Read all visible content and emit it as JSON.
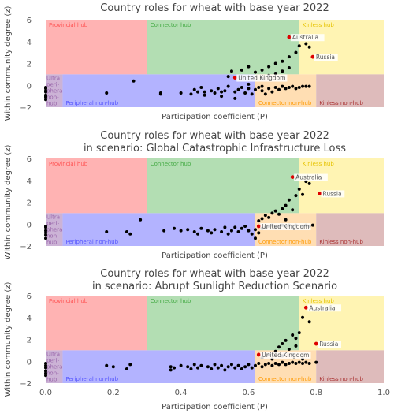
{
  "chart_data": [
    {
      "type": "scatter",
      "title": "Country roles for wheat with base year 2022",
      "xlabel": "Participation coefficient (P)",
      "ylabel": "Within community degree (z)",
      "xlim": [
        0,
        1
      ],
      "ylim": [
        -2,
        6
      ],
      "yticks": [
        -2,
        0,
        2,
        4,
        6
      ],
      "xticks": [],
      "regions": [
        {
          "name": "Provincial hub",
          "x": [
            0,
            0.3
          ],
          "y": [
            1,
            6
          ],
          "color": "#ffb3b3",
          "label_color": "#ff5555"
        },
        {
          "name": "Connector hub",
          "x": [
            0.3,
            0.75
          ],
          "y": [
            1,
            6
          ],
          "color": "#b3deb3",
          "label_color": "#44aa44"
        },
        {
          "name": "Kinless hub",
          "x": [
            0.75,
            1
          ],
          "y": [
            1,
            6
          ],
          "color": "#fff4b3",
          "label_color": "#e6c300"
        },
        {
          "name": "Ultra peri-pheral non-hub",
          "x": [
            0,
            0.05
          ],
          "y": [
            -2,
            1
          ],
          "color": "#ccb3d6",
          "label_color": "#9966aa"
        },
        {
          "name": "Peripheral non-hub",
          "x": [
            0.05,
            0.62
          ],
          "y": [
            -2,
            1
          ],
          "color": "#b3b3ff",
          "label_color": "#5555ff"
        },
        {
          "name": "Connector non-hub",
          "x": [
            0.62,
            0.8
          ],
          "y": [
            -2,
            1
          ],
          "color": "#ffdeb3",
          "label_color": "#ff9900"
        },
        {
          "name": "Kinless non-hub",
          "x": [
            0.8,
            1
          ],
          "y": [
            -2,
            1
          ],
          "color": "#debbbb",
          "label_color": "#aa3333"
        }
      ],
      "highlighted": [
        {
          "name": "Australia",
          "x": 0.72,
          "y": 4.4
        },
        {
          "name": "Russia",
          "x": 0.79,
          "y": 2.6
        },
        {
          "name": "United Kingdom",
          "x": 0.56,
          "y": 0.7
        }
      ],
      "points": [
        [
          0,
          -0.2
        ],
        [
          0,
          -0.3
        ],
        [
          0,
          -0.5
        ],
        [
          0,
          -0.6
        ],
        [
          0,
          -0.9
        ],
        [
          0,
          -1.0
        ],
        [
          0,
          -1.1
        ],
        [
          0,
          -1.3
        ],
        [
          0.18,
          -0.7
        ],
        [
          0.26,
          0.4
        ],
        [
          0.34,
          -0.7
        ],
        [
          0.34,
          -0.8
        ],
        [
          0.4,
          -0.7
        ],
        [
          0.43,
          -0.8
        ],
        [
          0.44,
          -0.4
        ],
        [
          0.45,
          -0.6
        ],
        [
          0.46,
          -0.2
        ],
        [
          0.47,
          -0.6
        ],
        [
          0.47,
          -0.9
        ],
        [
          0.49,
          -0.5
        ],
        [
          0.5,
          -0.7
        ],
        [
          0.51,
          -0.3
        ],
        [
          0.52,
          -1.0
        ],
        [
          0.52,
          -0.6
        ],
        [
          0.53,
          -0.5
        ],
        [
          0.54,
          -0.1
        ],
        [
          0.54,
          0.8
        ],
        [
          0.56,
          -1.2
        ],
        [
          0.56,
          -0.6
        ],
        [
          0.57,
          -0.4
        ],
        [
          0.58,
          -0.2
        ],
        [
          0.59,
          -0.7
        ],
        [
          0.6,
          0.1
        ],
        [
          0.6,
          -0.3
        ],
        [
          0.61,
          -0.8
        ],
        [
          0.62,
          -0.4
        ],
        [
          0.63,
          -0.2
        ],
        [
          0.64,
          -0.1
        ],
        [
          0.64,
          -0.5
        ],
        [
          0.65,
          -0.8
        ],
        [
          0.66,
          -0.3
        ],
        [
          0.67,
          -0.6
        ],
        [
          0.68,
          -0.2
        ],
        [
          0.69,
          -0.4
        ],
        [
          0.7,
          -0.1
        ],
        [
          0.71,
          -0.3
        ],
        [
          0.72,
          -0.2
        ],
        [
          0.73,
          -0.1
        ],
        [
          0.74,
          -0.3
        ],
        [
          0.75,
          -0.2
        ],
        [
          0.76,
          -0.1
        ],
        [
          0.77,
          -0.1
        ],
        [
          0.78,
          -0.1
        ],
        [
          0.64,
          0.6
        ],
        [
          0.66,
          0.9
        ],
        [
          0.68,
          1.1
        ],
        [
          0.7,
          1.3
        ],
        [
          0.72,
          1.6
        ],
        [
          0.55,
          1.3
        ],
        [
          0.58,
          1.4
        ],
        [
          0.6,
          1.7
        ],
        [
          0.62,
          1.2
        ],
        [
          0.64,
          1.4
        ],
        [
          0.66,
          1.7
        ],
        [
          0.68,
          2.0
        ],
        [
          0.7,
          2.2
        ],
        [
          0.72,
          2.6
        ],
        [
          0.74,
          3.0
        ],
        [
          0.75,
          3.6
        ],
        [
          0.77,
          3.8
        ],
        [
          0.78,
          3.5
        ]
      ]
    },
    {
      "type": "scatter",
      "title": "Country roles for wheat with base year 2022\nin scenario: Global Catastrophic Infrastructure Loss",
      "xlabel": "Participation coefficient (P)",
      "ylabel": "Within community degree (z)",
      "xlim": [
        0,
        1
      ],
      "ylim": [
        -2,
        6
      ],
      "yticks": [
        -2,
        0,
        2,
        4,
        6
      ],
      "xticks": [],
      "regions": [
        {
          "name": "Provincial hub",
          "x": [
            0,
            0.3
          ],
          "y": [
            1,
            6
          ],
          "color": "#ffb3b3",
          "label_color": "#ff5555"
        },
        {
          "name": "Connector hub",
          "x": [
            0.3,
            0.75
          ],
          "y": [
            1,
            6
          ],
          "color": "#b3deb3",
          "label_color": "#44aa44"
        },
        {
          "name": "Kinless hub",
          "x": [
            0.75,
            1
          ],
          "y": [
            1,
            6
          ],
          "color": "#fff4b3",
          "label_color": "#e6c300"
        },
        {
          "name": "Ultra peri-pheral non-hub",
          "x": [
            0,
            0.05
          ],
          "y": [
            -2,
            1
          ],
          "color": "#ccb3d6",
          "label_color": "#9966aa"
        },
        {
          "name": "Peripheral non-hub",
          "x": [
            0.05,
            0.62
          ],
          "y": [
            -2,
            1
          ],
          "color": "#b3b3ff",
          "label_color": "#5555ff"
        },
        {
          "name": "Connector non-hub",
          "x": [
            0.62,
            0.8
          ],
          "y": [
            -2,
            1
          ],
          "color": "#ffdeb3",
          "label_color": "#ff9900"
        },
        {
          "name": "Kinless non-hub",
          "x": [
            0.8,
            1
          ],
          "y": [
            -2,
            1
          ],
          "color": "#debbbb",
          "label_color": "#aa3333"
        }
      ],
      "highlighted": [
        {
          "name": "Australia",
          "x": 0.73,
          "y": 4.3
        },
        {
          "name": "Russia",
          "x": 0.81,
          "y": 2.8
        },
        {
          "name": "United Kingdom",
          "x": 0.63,
          "y": -0.2
        }
      ],
      "points": [
        [
          0,
          -0.2
        ],
        [
          0,
          -0.3
        ],
        [
          0,
          -0.6
        ],
        [
          0,
          -0.8
        ],
        [
          0,
          -1.0
        ],
        [
          0,
          -1.3
        ],
        [
          0.18,
          -0.7
        ],
        [
          0.24,
          -0.7
        ],
        [
          0.25,
          -0.9
        ],
        [
          0.28,
          0.4
        ],
        [
          0.35,
          -0.6
        ],
        [
          0.38,
          -0.4
        ],
        [
          0.4,
          -0.6
        ],
        [
          0.42,
          -0.5
        ],
        [
          0.44,
          -0.7
        ],
        [
          0.45,
          -0.9
        ],
        [
          0.46,
          -0.4
        ],
        [
          0.48,
          -0.6
        ],
        [
          0.49,
          -0.8
        ],
        [
          0.5,
          -0.5
        ],
        [
          0.52,
          -0.7
        ],
        [
          0.53,
          -0.3
        ],
        [
          0.54,
          -0.9
        ],
        [
          0.55,
          -0.6
        ],
        [
          0.56,
          -0.3
        ],
        [
          0.57,
          -0.7
        ],
        [
          0.58,
          -0.4
        ],
        [
          0.59,
          -0.2
        ],
        [
          0.6,
          -0.6
        ],
        [
          0.61,
          -0.9
        ],
        [
          0.62,
          -0.5
        ],
        [
          0.62,
          -1.3
        ],
        [
          0.63,
          -0.8
        ],
        [
          0.64,
          -0.4
        ],
        [
          0.65,
          -0.3
        ],
        [
          0.66,
          -0.2
        ],
        [
          0.67,
          -0.1
        ],
        [
          0.68,
          -0.3
        ],
        [
          0.69,
          -0.2
        ],
        [
          0.7,
          -0.1
        ],
        [
          0.71,
          -0.2
        ],
        [
          0.72,
          -0.1
        ],
        [
          0.73,
          -0.3
        ],
        [
          0.74,
          -0.1
        ],
        [
          0.76,
          -0.2
        ],
        [
          0.77,
          -0.1
        ],
        [
          0.78,
          -0.2
        ],
        [
          0.79,
          -0.1
        ],
        [
          0.63,
          0.3
        ],
        [
          0.64,
          0.5
        ],
        [
          0.65,
          0.8
        ],
        [
          0.66,
          0.6
        ],
        [
          0.67,
          1.0
        ],
        [
          0.68,
          1.2
        ],
        [
          0.69,
          0.9
        ],
        [
          0.7,
          1.4
        ],
        [
          0.71,
          1.7
        ],
        [
          0.72,
          2.2
        ],
        [
          0.74,
          2.6
        ],
        [
          0.76,
          2.7
        ],
        [
          0.75,
          3.2
        ],
        [
          0.77,
          3.9
        ],
        [
          0.78,
          3.7
        ],
        [
          0.73,
          1.3
        ],
        [
          0.71,
          0.4
        ]
      ]
    },
    {
      "type": "scatter",
      "title": "Country roles for wheat with base year 2022\nin scenario: Abrupt Sunlight Reduction Scenario",
      "xlabel": "Participation coefficient (P)",
      "ylabel": "Within community degree (z)",
      "xlim": [
        0,
        1
      ],
      "ylim": [
        -2,
        6
      ],
      "yticks": [
        -2,
        0,
        2,
        4,
        6
      ],
      "xticks": [
        0.0,
        0.2,
        0.4,
        0.6,
        0.8,
        1.0
      ],
      "regions": [
        {
          "name": "Provincial hub",
          "x": [
            0,
            0.3
          ],
          "y": [
            1,
            6
          ],
          "color": "#ffb3b3",
          "label_color": "#ff5555"
        },
        {
          "name": "Connector hub",
          "x": [
            0.3,
            0.75
          ],
          "y": [
            1,
            6
          ],
          "color": "#b3deb3",
          "label_color": "#44aa44"
        },
        {
          "name": "Kinless hub",
          "x": [
            0.75,
            1
          ],
          "y": [
            1,
            6
          ],
          "color": "#fff4b3",
          "label_color": "#e6c300"
        },
        {
          "name": "Ultra peri-pheral non-hub",
          "x": [
            0,
            0.05
          ],
          "y": [
            -2,
            1
          ],
          "color": "#ccb3d6",
          "label_color": "#9966aa"
        },
        {
          "name": "Peripheral non-hub",
          "x": [
            0.05,
            0.62
          ],
          "y": [
            -2,
            1
          ],
          "color": "#b3b3ff",
          "label_color": "#5555ff"
        },
        {
          "name": "Connector non-hub",
          "x": [
            0.62,
            0.8
          ],
          "y": [
            -2,
            1
          ],
          "color": "#ffdeb3",
          "label_color": "#ff9900"
        },
        {
          "name": "Kinless non-hub",
          "x": [
            0.8,
            1
          ],
          "y": [
            -2,
            1
          ],
          "color": "#debbbb",
          "label_color": "#aa3333"
        }
      ],
      "highlighted": [
        {
          "name": "Australia",
          "x": 0.77,
          "y": 4.9
        },
        {
          "name": "Russia",
          "x": 0.8,
          "y": 1.6
        },
        {
          "name": "United Kingdom",
          "x": 0.63,
          "y": 0.6
        }
      ],
      "points": [
        [
          0,
          -0.2
        ],
        [
          0,
          -0.4
        ],
        [
          0,
          -0.6
        ],
        [
          0,
          -0.9
        ],
        [
          0,
          -1.1
        ],
        [
          0,
          -1.3
        ],
        [
          0.18,
          -0.4
        ],
        [
          0.2,
          -0.5
        ],
        [
          0.24,
          -0.7
        ],
        [
          0.25,
          -0.3
        ],
        [
          0.37,
          -0.5
        ],
        [
          0.37,
          -0.8
        ],
        [
          0.38,
          -0.6
        ],
        [
          0.4,
          -0.4
        ],
        [
          0.42,
          -0.5
        ],
        [
          0.43,
          -0.7
        ],
        [
          0.44,
          -0.3
        ],
        [
          0.45,
          -0.6
        ],
        [
          0.46,
          -0.4
        ],
        [
          0.48,
          -0.5
        ],
        [
          0.49,
          -0.7
        ],
        [
          0.5,
          -0.3
        ],
        [
          0.51,
          -0.6
        ],
        [
          0.52,
          -0.4
        ],
        [
          0.53,
          -0.8
        ],
        [
          0.54,
          -0.5
        ],
        [
          0.55,
          -0.3
        ],
        [
          0.56,
          -0.6
        ],
        [
          0.57,
          -0.4
        ],
        [
          0.58,
          -0.7
        ],
        [
          0.59,
          -0.5
        ],
        [
          0.6,
          -0.3
        ],
        [
          0.61,
          -0.6
        ],
        [
          0.62,
          -0.4
        ],
        [
          0.63,
          -0.2
        ],
        [
          0.64,
          -0.5
        ],
        [
          0.65,
          -0.3
        ],
        [
          0.66,
          -0.2
        ],
        [
          0.67,
          -0.4
        ],
        [
          0.68,
          -0.2
        ],
        [
          0.69,
          -0.3
        ],
        [
          0.7,
          -0.1
        ],
        [
          0.71,
          -0.3
        ],
        [
          0.72,
          -0.2
        ],
        [
          0.73,
          -0.1
        ],
        [
          0.74,
          -0.2
        ],
        [
          0.75,
          -0.1
        ],
        [
          0.76,
          -0.2
        ],
        [
          0.77,
          -0.1
        ],
        [
          0.78,
          -0.2
        ],
        [
          0.8,
          -0.1
        ],
        [
          0.64,
          0.3
        ],
        [
          0.66,
          0.6
        ],
        [
          0.68,
          0.9
        ],
        [
          0.69,
          1.3
        ],
        [
          0.7,
          1.6
        ],
        [
          0.71,
          1.9
        ],
        [
          0.72,
          1.1
        ],
        [
          0.73,
          2.4
        ],
        [
          0.74,
          2.1
        ],
        [
          0.75,
          2.6
        ],
        [
          0.76,
          4.0
        ],
        [
          0.78,
          3.6
        ],
        [
          0.74,
          1.4
        ],
        [
          0.7,
          0.5
        ],
        [
          0.67,
          0.2
        ],
        [
          0.76,
          0.2
        ],
        [
          0.73,
          0.6
        ]
      ]
    }
  ]
}
